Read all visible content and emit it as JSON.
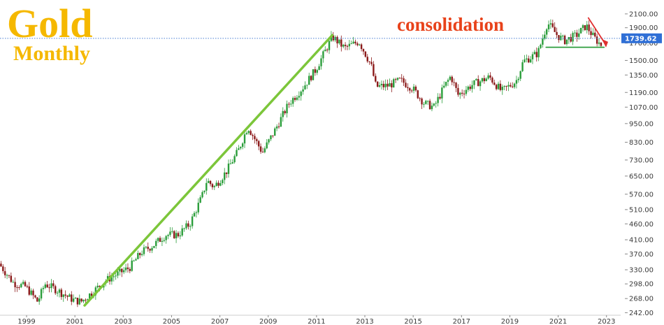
{
  "chart_data": {
    "type": "candlestick",
    "title": "Gold",
    "subtitle": "Monthly",
    "annotation": "consolidation",
    "current_price_label": "1739.62",
    "current_price": 1739.62,
    "scale": "log",
    "ylim": [
      240,
      2230
    ],
    "xlim": [
      1997.9,
      2023.5
    ],
    "y_ticks": [
      2100.0,
      1900.0,
      1700.0,
      1500.0,
      1350.0,
      1190.0,
      1070.0,
      950.0,
      830.0,
      730.0,
      650.0,
      570.0,
      510.0,
      460.0,
      410.0,
      370.0,
      330.0,
      298.0,
      268.0,
      242.0
    ],
    "y_tick_labels": [
      "2100.00",
      "1900.00",
      "1700.00",
      "1500.00",
      "1350.00",
      "1190.00",
      "1070.00",
      "950.00",
      "830.00",
      "730.00",
      "650.00",
      "570.00",
      "510.00",
      "460.00",
      "410.00",
      "370.00",
      "330.00",
      "298.00",
      "268.00",
      "242.00"
    ],
    "x_ticks": [
      1999,
      2001,
      2003,
      2005,
      2007,
      2009,
      2011,
      2013,
      2015,
      2017,
      2019,
      2021,
      2023
    ],
    "x_tick_labels": [
      "1999",
      "2001",
      "2003",
      "2005",
      "2007",
      "2009",
      "2011",
      "2013",
      "2015",
      "2017",
      "2019",
      "2021",
      "2023"
    ],
    "price_path": [
      [
        1997.9,
        345
      ],
      [
        1998.5,
        300
      ],
      [
        1999.0,
        292
      ],
      [
        1999.5,
        262
      ],
      [
        1999.8,
        298
      ],
      [
        2000.3,
        285
      ],
      [
        2000.8,
        270
      ],
      [
        2001.0,
        265
      ],
      [
        2001.3,
        262
      ],
      [
        2001.8,
        282
      ],
      [
        2002.3,
        305
      ],
      [
        2002.8,
        320
      ],
      [
        2003.3,
        335
      ],
      [
        2003.8,
        375
      ],
      [
        2004.3,
        395
      ],
      [
        2004.8,
        425
      ],
      [
        2005.3,
        425
      ],
      [
        2005.8,
        460
      ],
      [
        2006.3,
        560
      ],
      [
        2006.5,
        630
      ],
      [
        2006.8,
        600
      ],
      [
        2007.3,
        670
      ],
      [
        2007.8,
        780
      ],
      [
        2008.2,
        930
      ],
      [
        2008.8,
        770
      ],
      [
        2009.3,
        900
      ],
      [
        2009.9,
        1100
      ],
      [
        2010.5,
        1240
      ],
      [
        2011.0,
        1400
      ],
      [
        2011.7,
        1780
      ],
      [
        2012.2,
        1640
      ],
      [
        2012.8,
        1720
      ],
      [
        2013.3,
        1450
      ],
      [
        2013.5,
        1240
      ],
      [
        2014.0,
        1250
      ],
      [
        2014.5,
        1300
      ],
      [
        2015.0,
        1230
      ],
      [
        2015.5,
        1100
      ],
      [
        2015.9,
        1070
      ],
      [
        2016.3,
        1230
      ],
      [
        2016.6,
        1340
      ],
      [
        2016.9,
        1170
      ],
      [
        2017.5,
        1260
      ],
      [
        2018.2,
        1330
      ],
      [
        2018.7,
        1200
      ],
      [
        2019.3,
        1290
      ],
      [
        2019.6,
        1490
      ],
      [
        2020.2,
        1580
      ],
      [
        2020.6,
        1970
      ],
      [
        2021.0,
        1800
      ],
      [
        2021.3,
        1730
      ],
      [
        2021.8,
        1800
      ],
      [
        2022.2,
        1930
      ],
      [
        2022.5,
        1780
      ],
      [
        2022.8,
        1680
      ]
    ],
    "trend_lines": [
      {
        "color": "#7cc63a",
        "points": [
          [
            2001.4,
            255
          ],
          [
            2011.65,
            1800
          ]
        ]
      },
      {
        "color": "#e03030",
        "points": [
          [
            2022.25,
            2040
          ],
          [
            2022.95,
            1690
          ]
        ]
      },
      {
        "color": "#2e9e3c",
        "points": [
          [
            2020.5,
            1650
          ],
          [
            2022.9,
            1650
          ]
        ]
      }
    ],
    "reference_line": {
      "value": 1760,
      "color": "#4a7fd4",
      "style": "dotted"
    },
    "colors": {
      "up": "#2a9d3a",
      "down": "#8b1a1a",
      "title": "#f5b800",
      "annotation": "#e8421a",
      "price_tag": "#2f6fd6"
    },
    "grid": false
  }
}
